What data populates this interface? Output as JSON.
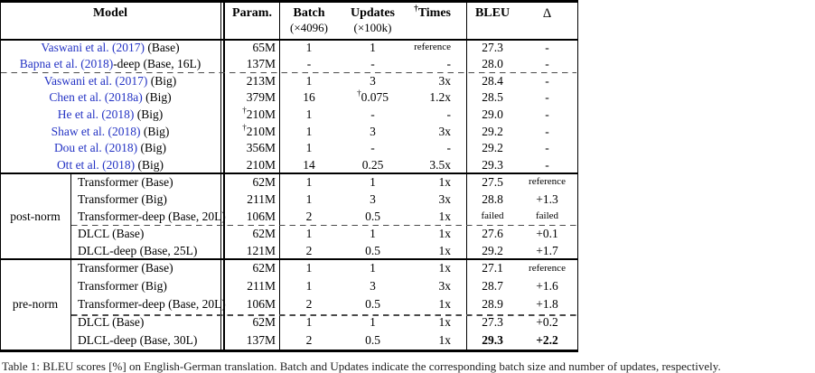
{
  "colors": {
    "citation_blue": "#2433c4",
    "rule_black": "#000000",
    "dashed_gray": "#4a4a4a",
    "background": "#ffffff"
  },
  "header": {
    "model": "Model",
    "param": "Param.",
    "batch": "Batch",
    "batch_sub": "(×4096)",
    "updates": "Updates",
    "updates_sub": "(×100k)",
    "times_dagger": "†",
    "times": "Times",
    "bleu": "BLEU",
    "delta": "Δ"
  },
  "sections": [
    {
      "group": "",
      "rows": [
        {
          "cite": "Vaswani et al. (2017)",
          "model_rest": " (Base)",
          "param": "65M",
          "batch": "1",
          "updates": "1",
          "times": "reference",
          "bleu": "27.3",
          "delta": "-"
        },
        {
          "cite": "Bapna et al. (2018)",
          "model_rest": "-deep (Base, 16L)",
          "param": "137M",
          "batch": "-",
          "updates": "-",
          "times": "-",
          "bleu": "28.0",
          "delta": "-"
        },
        {
          "cite": "Vaswani et al. (2017)",
          "model_rest": " (Big)",
          "param": "213M",
          "batch": "1",
          "updates": "3",
          "times": "3x",
          "bleu": "28.4",
          "delta": "-"
        },
        {
          "cite": "Chen et al. (2018a)",
          "model_rest": " (Big)",
          "param": "379M",
          "batch": "16",
          "updates": "†0.075",
          "times": "1.2x",
          "bleu": "28.5",
          "delta": "-"
        },
        {
          "cite": "He et al. (2018)",
          "model_rest": " (Big)",
          "param": "†210M",
          "batch": "1",
          "updates": "-",
          "times": "-",
          "bleu": "29.0",
          "delta": "-"
        },
        {
          "cite": "Shaw et al. (2018)",
          "model_rest": " (Big)",
          "param": "†210M",
          "batch": "1",
          "updates": "3",
          "times": "3x",
          "bleu": "29.2",
          "delta": "-"
        },
        {
          "cite": "Dou et al. (2018)",
          "model_rest": " (Big)",
          "param": "356M",
          "batch": "1",
          "updates": "-",
          "times": "-",
          "bleu": "29.2",
          "delta": "-"
        },
        {
          "cite": "Ott et al. (2018)",
          "model_rest": " (Big)",
          "param": "210M",
          "batch": "14",
          "updates": "0.25",
          "times": "3.5x",
          "bleu": "29.3",
          "delta": "-"
        }
      ]
    },
    {
      "group": "post-norm",
      "rows": [
        {
          "model": "Transformer (Base)",
          "param": "62M",
          "batch": "1",
          "updates": "1",
          "times": "1x",
          "bleu": "27.5",
          "delta": "reference"
        },
        {
          "model": "Transformer (Big)",
          "param": "211M",
          "batch": "1",
          "updates": "3",
          "times": "3x",
          "bleu": "28.8",
          "delta": "+1.3"
        },
        {
          "model": "Transformer-deep (Base, 20L)",
          "param": "106M",
          "batch": "2",
          "updates": "0.5",
          "times": "1x",
          "bleu": "failed",
          "delta": "failed"
        },
        {
          "model": "DLCL (Base)",
          "param": "62M",
          "batch": "1",
          "updates": "1",
          "times": "1x",
          "bleu": "27.6",
          "delta": "+0.1"
        },
        {
          "model": "DLCL-deep (Base, 25L)",
          "param": "121M",
          "batch": "2",
          "updates": "0.5",
          "times": "1x",
          "bleu": "29.2",
          "delta": "+1.7"
        }
      ]
    },
    {
      "group": "pre-norm",
      "rows": [
        {
          "model": "Transformer (Base)",
          "param": "62M",
          "batch": "1",
          "updates": "1",
          "times": "1x",
          "bleu": "27.1",
          "delta": "reference"
        },
        {
          "model": "Transformer (Big)",
          "param": "211M",
          "batch": "1",
          "updates": "3",
          "times": "3x",
          "bleu": "28.7",
          "delta": "+1.6"
        },
        {
          "model": "Transformer-deep (Base, 20L)",
          "param": "106M",
          "batch": "2",
          "updates": "0.5",
          "times": "1x",
          "bleu": "28.9",
          "delta": "+1.8"
        },
        {
          "model": "DLCL (Base)",
          "param": "62M",
          "batch": "1",
          "updates": "1",
          "times": "1x",
          "bleu": "27.3",
          "delta": "+0.2"
        },
        {
          "model": "DLCL-deep (Base, 30L)",
          "param": "137M",
          "batch": "2",
          "updates": "0.5",
          "times": "1x",
          "bleu": "29.3",
          "delta": "+2.2",
          "bold_results": true
        }
      ]
    }
  ],
  "caption": "Table 1: BLEU scores [%] on English-German translation. Batch and Updates indicate the corresponding batch size and number of updates, respectively."
}
